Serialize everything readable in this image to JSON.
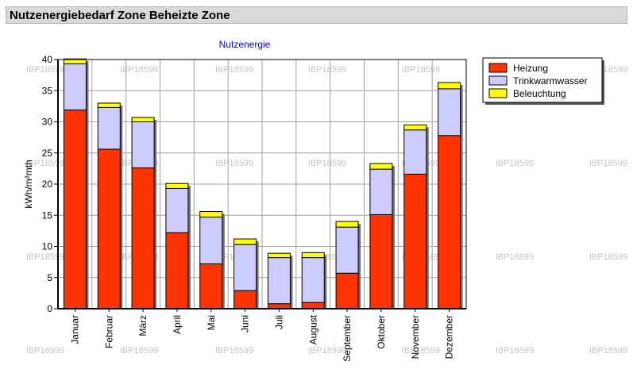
{
  "header": {
    "title": "Nutzenergiebedarf Zone Beheizte Zone"
  },
  "watermark": "IBP18599",
  "chart_data": {
    "type": "bar",
    "stacked": true,
    "title": "Nutzenergie",
    "xlabel": "",
    "ylabel": "kWh/m²mth",
    "ylim": [
      0,
      40
    ],
    "yticks": [
      0,
      5,
      10,
      15,
      20,
      25,
      30,
      35,
      40
    ],
    "grid": true,
    "legend_position": "top-right",
    "categories": [
      "Januar",
      "Februar",
      "März",
      "April",
      "Mai",
      "Juni",
      "Juli",
      "August",
      "September",
      "Oktober",
      "November",
      "Dezember"
    ],
    "series": [
      {
        "name": "Heizung",
        "color": "#ff3300",
        "values": [
          31.9,
          25.6,
          22.6,
          12.2,
          7.2,
          2.9,
          0.8,
          1.0,
          5.7,
          15.1,
          21.6,
          27.8
        ]
      },
      {
        "name": "Trinkwarmwasser",
        "color": "#ccccff",
        "values": [
          7.4,
          6.7,
          7.4,
          7.1,
          7.5,
          7.4,
          7.4,
          7.2,
          7.4,
          7.3,
          7.1,
          7.5
        ]
      },
      {
        "name": "Beleuchtung",
        "color": "#ffff00",
        "values": [
          0.8,
          0.7,
          0.7,
          0.8,
          0.9,
          0.9,
          0.7,
          0.8,
          0.9,
          0.9,
          0.8,
          1.0
        ]
      }
    ]
  }
}
